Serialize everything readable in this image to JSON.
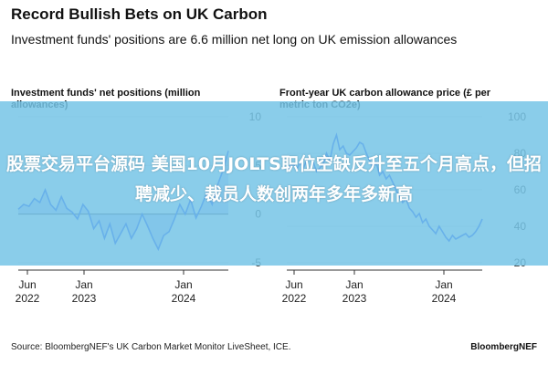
{
  "header": {
    "title": "Record Bullish Bets on UK Carbon",
    "subtitle": "Investment funds' positions are 6.6 million net long on UK emission allowances"
  },
  "chart_data": [
    {
      "type": "area",
      "title": "Investment funds' net positions (million allowances)",
      "ylim": [
        -5,
        10
      ],
      "yticks": [
        "10",
        "5",
        "0",
        "-5"
      ],
      "xticks": [
        [
          "Jun",
          "2022"
        ],
        [
          "Jan",
          "2023"
        ],
        [
          "Jan",
          "2024"
        ]
      ],
      "color": "#1f44ff",
      "series": [
        {
          "values": [
            0.5,
            1.0,
            0.8,
            1.6,
            1.2,
            2.5,
            1.0,
            0.4,
            1.8,
            0.6,
            0.2,
            -0.5,
            1.0,
            0.3,
            -1.5,
            -0.7,
            -2.5,
            -1.0,
            -3.0,
            -2.0,
            -1.0,
            -2.5,
            -1.5,
            0.0,
            -1.2,
            -2.5,
            -3.6,
            -2.2,
            -1.8,
            -0.5,
            1.0,
            0.0,
            1.5,
            -0.4,
            0.8,
            2.2,
            1.0,
            3.0,
            4.5,
            6.5
          ]
        }
      ]
    },
    {
      "type": "line",
      "title": "Front-year UK carbon allowance price (£ per metric ton CO2e)",
      "ylim": [
        20,
        100
      ],
      "yticks": [
        "100",
        "80",
        "60",
        "40",
        "20"
      ],
      "xticks": [
        [
          "Jun",
          "2022"
        ],
        [
          "Jan",
          "2023"
        ],
        [
          "Jan",
          "2024"
        ]
      ],
      "color": "#1f44ff",
      "series": [
        {
          "values": [
            70,
            73,
            74,
            71,
            75,
            72,
            76,
            78,
            75,
            70,
            72,
            74,
            80,
            76,
            85,
            90,
            82,
            84,
            80,
            79,
            81,
            83,
            86,
            85,
            80,
            76,
            72,
            75,
            68,
            70,
            66,
            68,
            64,
            60,
            56,
            53,
            55,
            50,
            48,
            45,
            47,
            42,
            44,
            40,
            38,
            36,
            40,
            37,
            34,
            32,
            35,
            33,
            34,
            35,
            36,
            34,
            35,
            37,
            40,
            44
          ]
        }
      ]
    }
  ],
  "overlay": {
    "text": "股票交易平台源码 美国10月JOLTS职位空缺反升至五个月高点，但招聘减少、裁员人数创两年多年多新高"
  },
  "footer": {
    "source": "Source: BloombergNEF's UK Carbon Market Monitor LiveSheet, ICE.",
    "brand": "BloombergNEF"
  }
}
